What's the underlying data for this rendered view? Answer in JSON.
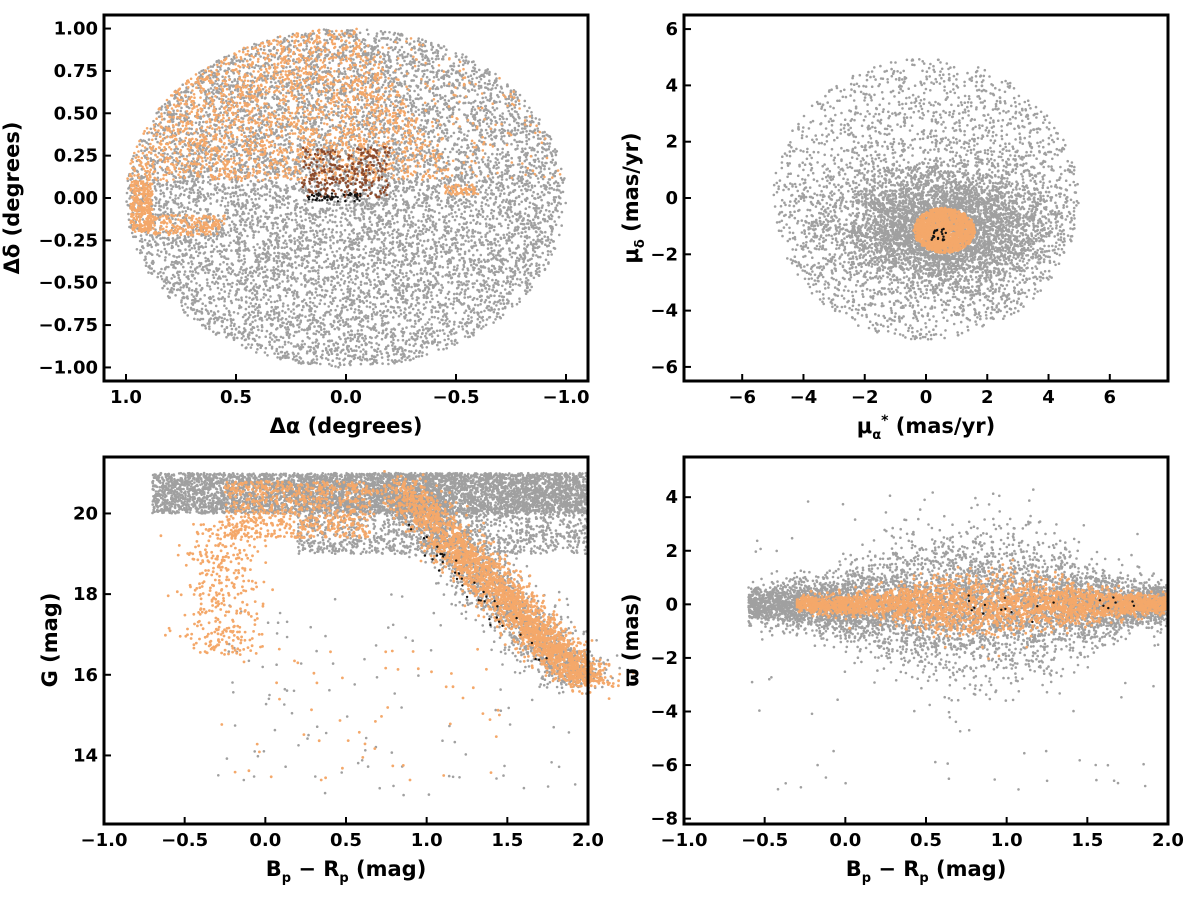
{
  "colors": {
    "field": "#a0a0a0",
    "members": "#f4a86a",
    "dark_members": "#8b4a2c",
    "core": "#111111",
    "frame": "#000000"
  },
  "chart_data": [
    {
      "id": "spatial",
      "type": "scatter",
      "xlabel": "Δα (degrees)",
      "ylabel": "Δδ (degrees)",
      "xlim": [
        1.1,
        -1.1
      ],
      "ylim": [
        -1.08,
        1.08
      ],
      "xticks": [
        1.0,
        0.5,
        0.0,
        -0.5,
        -1.0
      ],
      "xtick_labels": [
        "1.0",
        "0.5",
        "0.0",
        "−0.5",
        "−1.0"
      ],
      "yticks": [
        1.0,
        0.75,
        0.5,
        0.25,
        0.0,
        -0.25,
        -0.5,
        -0.75,
        -1.0
      ],
      "ytick_labels": [
        "1.00",
        "0.75",
        "0.50",
        "0.25",
        "0.00",
        "−0.25",
        "−0.50",
        "−0.75",
        "−1.00"
      ],
      "grid": false,
      "series": [
        {
          "role": "field",
          "color": "#a0a0a0",
          "distribution": "disk of radius 1.0 deg centred on (0, 0)"
        },
        {
          "role": "members",
          "color": "#f4a86a",
          "distribution": "upper half of disk, Δδ from 0.1 to 1.0; patch near Δα 0.9–1.0, Δδ −0.2–0.1"
        },
        {
          "role": "dark-members",
          "color": "#8b4a2c",
          "distribution": "Δα −0.2–0.2, Δδ 0.0–0.3"
        },
        {
          "role": "core",
          "color": "#111111",
          "distribution": "Δα −0.1–0.1, Δδ −0.02–0.05"
        }
      ]
    },
    {
      "id": "proper-motion",
      "type": "scatter",
      "xlabel": "μ*α (mas/yr)",
      "ylabel": "μδ (mas/yr)",
      "xlim": [
        -7.9,
        7.9
      ],
      "ylim": [
        -6.5,
        6.5
      ],
      "xticks": [
        -6,
        -4,
        -2,
        0,
        2,
        4,
        6
      ],
      "xtick_labels": [
        "−6",
        "−4",
        "−2",
        "0",
        "2",
        "4",
        "6"
      ],
      "yticks": [
        6,
        4,
        2,
        0,
        -2,
        -4,
        -6
      ],
      "ytick_labels": [
        "6",
        "4",
        "2",
        "0",
        "−2",
        "−4",
        "−6"
      ],
      "grid": false,
      "series": [
        {
          "role": "field",
          "color": "#a0a0a0",
          "distribution": "disk of radius 5 mas/yr, dense core centred near (0.6, −1.0)"
        },
        {
          "role": "members",
          "color": "#f4a86a",
          "distribution": "clump centred at (0.6, −1.2), radius about 1"
        },
        {
          "role": "core",
          "color": "#111111",
          "distribution": "few points near (0.5, −1.3)"
        }
      ]
    },
    {
      "id": "cmd",
      "type": "scatter",
      "xlabel": "Bp − Rp (mag)",
      "ylabel": "G (mag)",
      "xlim": [
        -1.0,
        2.0
      ],
      "ylim": [
        12.3,
        21.4
      ],
      "y_inverted": false,
      "xticks": [
        -1.0,
        -0.5,
        0.0,
        0.5,
        1.0,
        1.5,
        2.0
      ],
      "xtick_labels": [
        "−1.0",
        "−0.5",
        "0.0",
        "0.5",
        "1.0",
        "1.5",
        "2.0"
      ],
      "yticks": [
        20,
        18,
        16,
        14
      ],
      "ytick_labels": [
        "20",
        "18",
        "16",
        "14"
      ],
      "grid": false,
      "series": [
        {
          "role": "field",
          "color": "#a0a0a0",
          "distribution": "dense band at G 20–21 across Bp−Rp −0.7–2.0, sequence from (1.0, 20) down to (2.0, 15.8)"
        },
        {
          "role": "members",
          "color": "#f4a86a",
          "distribution": "main sequence from (0.8, 20.8) to (2.0, 15.8); blue branch near Bp−Rp −0.2 from G 20 to 16.5"
        },
        {
          "role": "core",
          "color": "#111111",
          "distribution": "scattered along main sequence between Bp−Rp 0.9 and 1.7"
        }
      ]
    },
    {
      "id": "parallax",
      "type": "scatter",
      "xlabel": "Bp − Rp (mag)",
      "ylabel": "ϖ (mas)",
      "xlim": [
        -1.0,
        2.0
      ],
      "ylim": [
        -8.2,
        5.5
      ],
      "xticks": [
        -1.0,
        -0.5,
        0.0,
        0.5,
        1.0,
        1.5,
        2.0
      ],
      "xtick_labels": [
        "−1.0",
        "−0.5",
        "0.0",
        "0.5",
        "1.0",
        "1.5",
        "2.0"
      ],
      "yticks": [
        4,
        2,
        0,
        -2,
        -4,
        -6,
        -8
      ],
      "ytick_labels": [
        "4",
        "2",
        "0",
        "−2",
        "−4",
        "−6",
        "−8"
      ],
      "grid": false,
      "series": [
        {
          "role": "field",
          "color": "#a0a0a0",
          "distribution": "band around ϖ 0, spread ±2 mas, Bp−Rp −0.6–2.0"
        },
        {
          "role": "members",
          "color": "#f4a86a",
          "distribution": "tight band around ϖ 0, spread ±1 mas, Bp−Rp −0.3–2.0"
        },
        {
          "role": "core",
          "color": "#111111",
          "distribution": "few points near ϖ 0, Bp−Rp 0.7–1.8"
        }
      ]
    }
  ]
}
